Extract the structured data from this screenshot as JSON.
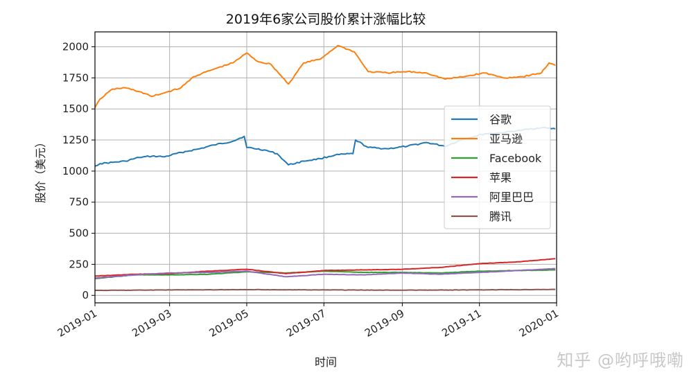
{
  "chart_data": {
    "type": "line",
    "title": "2019年6家公司股价累计涨幅比较",
    "xlabel": "时间",
    "ylabel": "股价（美元）",
    "xlim": [
      "2019-01-01",
      "2020-01-01"
    ],
    "ylim": [
      -60,
      2120
    ],
    "grid": true,
    "legend_position": "center-right",
    "x_ticks": [
      "2019-01",
      "2019-03",
      "2019-05",
      "2019-07",
      "2019-09",
      "2019-11",
      "2020-01"
    ],
    "y_ticks": [
      0,
      250,
      500,
      750,
      1000,
      1250,
      1500,
      1750,
      2000
    ],
    "series": [
      {
        "name": "谷歌",
        "color": "#1f77b4",
        "points": [
          [
            "2019-01-01",
            1040
          ],
          [
            "2019-01-05",
            1060
          ],
          [
            "2019-01-15",
            1070
          ],
          [
            "2019-01-25",
            1080
          ],
          [
            "2019-02-05",
            1110
          ],
          [
            "2019-02-15",
            1120
          ],
          [
            "2019-02-25",
            1115
          ],
          [
            "2019-03-10",
            1150
          ],
          [
            "2019-03-25",
            1180
          ],
          [
            "2019-04-05",
            1210
          ],
          [
            "2019-04-20",
            1240
          ],
          [
            "2019-04-29",
            1280
          ],
          [
            "2019-05-01",
            1190
          ],
          [
            "2019-05-15",
            1170
          ],
          [
            "2019-05-25",
            1140
          ],
          [
            "2019-06-03",
            1050
          ],
          [
            "2019-06-15",
            1080
          ],
          [
            "2019-06-28",
            1100
          ],
          [
            "2019-07-10",
            1130
          ],
          [
            "2019-07-24",
            1140
          ],
          [
            "2019-07-26",
            1250
          ],
          [
            "2019-08-05",
            1190
          ],
          [
            "2019-08-20",
            1180
          ],
          [
            "2019-09-05",
            1200
          ],
          [
            "2019-09-20",
            1230
          ],
          [
            "2019-10-05",
            1200
          ],
          [
            "2019-10-20",
            1260
          ],
          [
            "2019-11-05",
            1300
          ],
          [
            "2019-11-20",
            1310
          ],
          [
            "2019-12-05",
            1330
          ],
          [
            "2019-12-20",
            1350
          ],
          [
            "2019-12-31",
            1340
          ]
        ]
      },
      {
        "name": "亚马逊",
        "color": "#ff7f0e",
        "points": [
          [
            "2019-01-01",
            1510
          ],
          [
            "2019-01-05",
            1580
          ],
          [
            "2019-01-15",
            1660
          ],
          [
            "2019-01-25",
            1670
          ],
          [
            "2019-02-05",
            1640
          ],
          [
            "2019-02-15",
            1600
          ],
          [
            "2019-02-25",
            1630
          ],
          [
            "2019-03-10",
            1670
          ],
          [
            "2019-03-20",
            1760
          ],
          [
            "2019-04-05",
            1820
          ],
          [
            "2019-04-20",
            1870
          ],
          [
            "2019-05-01",
            1950
          ],
          [
            "2019-05-10",
            1880
          ],
          [
            "2019-05-20",
            1860
          ],
          [
            "2019-06-03",
            1700
          ],
          [
            "2019-06-15",
            1870
          ],
          [
            "2019-06-28",
            1900
          ],
          [
            "2019-07-12",
            2010
          ],
          [
            "2019-07-25",
            1960
          ],
          [
            "2019-08-05",
            1800
          ],
          [
            "2019-08-20",
            1790
          ],
          [
            "2019-09-05",
            1800
          ],
          [
            "2019-09-20",
            1790
          ],
          [
            "2019-10-05",
            1740
          ],
          [
            "2019-10-20",
            1760
          ],
          [
            "2019-11-05",
            1790
          ],
          [
            "2019-11-20",
            1750
          ],
          [
            "2019-12-05",
            1760
          ],
          [
            "2019-12-20",
            1790
          ],
          [
            "2019-12-26",
            1870
          ],
          [
            "2019-12-31",
            1850
          ]
        ]
      },
      {
        "name": "Facebook",
        "color": "#2ca02c",
        "points": [
          [
            "2019-01-01",
            135
          ],
          [
            "2019-02-01",
            165
          ],
          [
            "2019-03-01",
            165
          ],
          [
            "2019-04-01",
            170
          ],
          [
            "2019-05-01",
            190
          ],
          [
            "2019-06-01",
            180
          ],
          [
            "2019-07-01",
            195
          ],
          [
            "2019-08-01",
            185
          ],
          [
            "2019-09-01",
            185
          ],
          [
            "2019-10-01",
            180
          ],
          [
            "2019-11-01",
            195
          ],
          [
            "2019-12-01",
            200
          ],
          [
            "2019-12-31",
            205
          ]
        ]
      },
      {
        "name": "苹果",
        "color": "#d62728",
        "points": [
          [
            "2019-01-01",
            155
          ],
          [
            "2019-02-01",
            170
          ],
          [
            "2019-03-01",
            175
          ],
          [
            "2019-04-01",
            195
          ],
          [
            "2019-05-01",
            210
          ],
          [
            "2019-06-01",
            175
          ],
          [
            "2019-07-01",
            200
          ],
          [
            "2019-08-01",
            205
          ],
          [
            "2019-09-01",
            210
          ],
          [
            "2019-10-01",
            225
          ],
          [
            "2019-11-01",
            255
          ],
          [
            "2019-12-01",
            270
          ],
          [
            "2019-12-31",
            295
          ]
        ]
      },
      {
        "name": "阿里巴巴",
        "color": "#9467bd",
        "points": [
          [
            "2019-01-01",
            140
          ],
          [
            "2019-02-01",
            165
          ],
          [
            "2019-03-01",
            180
          ],
          [
            "2019-04-01",
            185
          ],
          [
            "2019-05-01",
            195
          ],
          [
            "2019-06-01",
            150
          ],
          [
            "2019-07-01",
            170
          ],
          [
            "2019-08-01",
            165
          ],
          [
            "2019-09-01",
            180
          ],
          [
            "2019-10-01",
            170
          ],
          [
            "2019-11-01",
            185
          ],
          [
            "2019-12-01",
            200
          ],
          [
            "2019-12-31",
            215
          ]
        ]
      },
      {
        "name": "腾讯",
        "color": "#8c564b",
        "points": [
          [
            "2019-01-01",
            40
          ],
          [
            "2019-03-01",
            44
          ],
          [
            "2019-05-01",
            46
          ],
          [
            "2019-07-01",
            44
          ],
          [
            "2019-09-01",
            42
          ],
          [
            "2019-11-01",
            44
          ],
          [
            "2019-12-31",
            48
          ]
        ]
      }
    ]
  },
  "watermark": "知乎 @哟呼哦嘞"
}
